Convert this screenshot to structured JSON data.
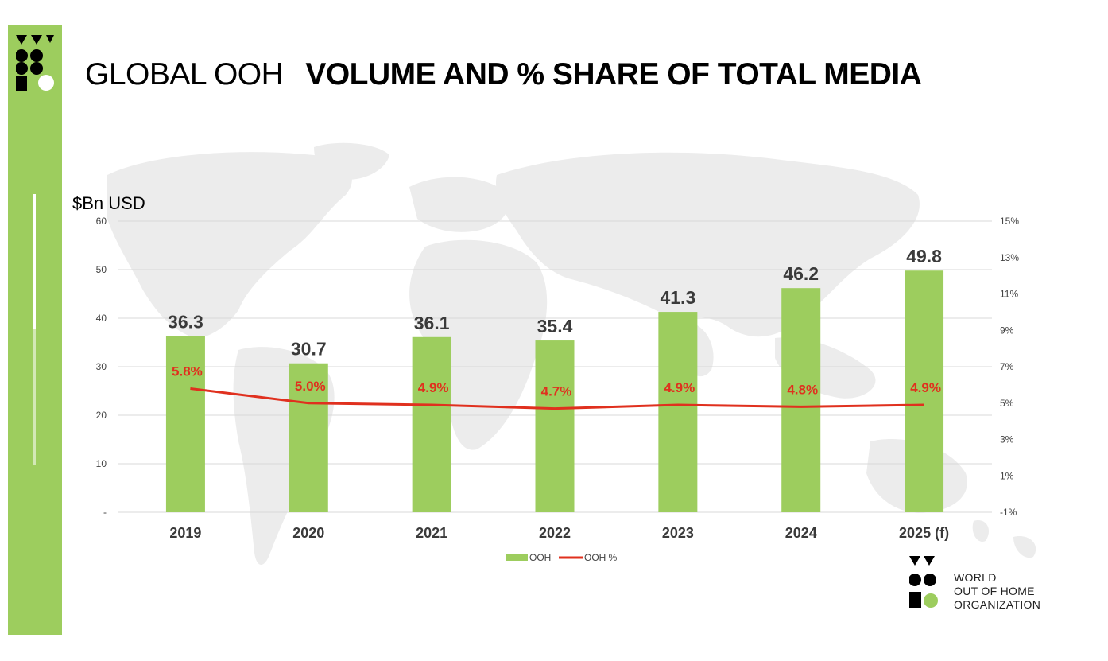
{
  "header": {
    "title_light": "GLOBAL OOH",
    "title_bold": "VOLUME AND  % SHARE OF TOTAL MEDIA"
  },
  "footer": {
    "org_line1": "WORLD",
    "org_line2": "OUT OF HOME",
    "org_line3": "ORGANIZATION"
  },
  "colors": {
    "brand_green": "#9dcd5e",
    "line_red": "#e0301e",
    "bar_label": "#3a3a3a"
  },
  "chart_data": {
    "type": "bar",
    "unit_label": "$Bn USD",
    "categories": [
      "2019",
      "2020",
      "2021",
      "2022",
      "2023",
      "2024",
      "2025 (f)"
    ],
    "series": [
      {
        "name": "OOH",
        "type": "bar",
        "axis": "left",
        "values": [
          36.3,
          30.7,
          36.1,
          35.4,
          41.3,
          46.2,
          49.8
        ],
        "labels": [
          "36.3",
          "30.7",
          "36.1",
          "35.4",
          "41.3",
          "46.2",
          "49.8"
        ]
      },
      {
        "name": "OOH %",
        "type": "line",
        "axis": "right",
        "values": [
          5.8,
          5.0,
          4.9,
          4.7,
          4.9,
          4.8,
          4.9
        ],
        "labels": [
          "5.8%",
          "5.0%",
          "4.9%",
          "4.7%",
          "4.9%",
          "4.8%",
          "4.9%"
        ]
      }
    ],
    "y_left": {
      "ylim": [
        0,
        60
      ],
      "ticks": [
        0,
        10,
        20,
        30,
        40,
        50,
        60
      ],
      "tick_labels": [
        "-",
        "10",
        "20",
        "30",
        "40",
        "50",
        "60"
      ]
    },
    "y_right": {
      "ylim": [
        -1,
        15
      ],
      "ticks": [
        -1,
        1,
        3,
        5,
        7,
        9,
        11,
        13,
        15
      ],
      "tick_labels": [
        "-1%",
        "1%",
        "3%",
        "5%",
        "7%",
        "9%",
        "11%",
        "13%",
        "15%"
      ]
    },
    "grid": true,
    "legend_position": "bottom-center"
  }
}
